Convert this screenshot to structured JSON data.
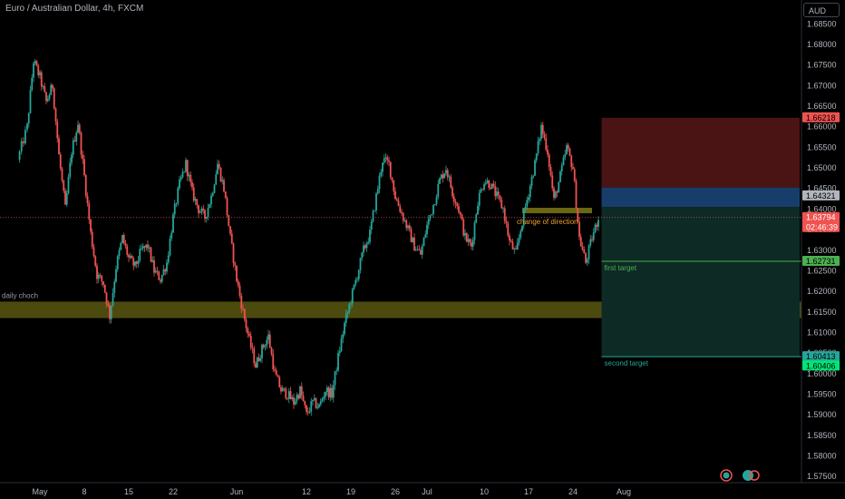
{
  "header": {
    "title": "Euro / Australian Dollar, 4h, FXCM",
    "currency": "AUD"
  },
  "colors": {
    "up": "#26a69a",
    "down": "#ef5350",
    "zone": "#4d4a0e",
    "stop": "#4a1414",
    "profit": "#0d2a25",
    "entry": "#173e6b",
    "first_target": "#4caf50",
    "second_target": "#26a69a"
  },
  "chart_data": {
    "type": "candlestick",
    "title": "Euro / Australian Dollar, 4h, FXCM",
    "xlabel": "",
    "ylabel": "",
    "x_ticks": [
      {
        "label": "May",
        "d": 0
      },
      {
        "label": "8",
        "d": 7
      },
      {
        "label": "15",
        "d": 14
      },
      {
        "label": "22",
        "d": 21
      },
      {
        "label": "Jun",
        "d": 31
      },
      {
        "label": "12",
        "d": 42
      },
      {
        "label": "19",
        "d": 49
      },
      {
        "label": "26",
        "d": 56
      },
      {
        "label": "Jul",
        "d": 61
      },
      {
        "label": "10",
        "d": 70
      },
      {
        "label": "17",
        "d": 77
      },
      {
        "label": "24",
        "d": 84
      },
      {
        "label": "Aug",
        "d": 92
      }
    ],
    "y_ticks": [
      "1.57500",
      "1.58000",
      "1.58500",
      "1.59000",
      "1.59500",
      "1.60000",
      "1.60500",
      "1.61000",
      "1.61500",
      "1.62000",
      "1.62500",
      "1.63000",
      "1.63500",
      "1.64000",
      "1.64500",
      "1.65000",
      "1.65500",
      "1.66000",
      "1.66500",
      "1.67000",
      "1.67500",
      "1.68000",
      "1.68500"
    ],
    "ylim": [
      1.5735,
      1.6908
    ],
    "price_path": [
      [
        -3.5,
        1.652
      ],
      [
        -2,
        1.66
      ],
      [
        -1,
        1.676
      ],
      [
        0,
        1.672
      ],
      [
        1,
        1.666
      ],
      [
        2,
        1.67
      ],
      [
        3,
        1.653
      ],
      [
        4,
        1.64
      ],
      [
        5,
        1.654
      ],
      [
        6,
        1.661
      ],
      [
        7,
        1.648
      ],
      [
        8,
        1.634
      ],
      [
        9,
        1.624
      ],
      [
        10,
        1.622
      ],
      [
        11,
        1.614
      ],
      [
        12,
        1.626
      ],
      [
        13,
        1.633
      ],
      [
        14,
        1.628
      ],
      [
        15,
        1.626
      ],
      [
        16,
        1.63
      ],
      [
        17,
        1.631
      ],
      [
        18,
        1.625
      ],
      [
        19,
        1.623
      ],
      [
        20,
        1.627
      ],
      [
        21,
        1.638
      ],
      [
        22,
        1.646
      ],
      [
        23,
        1.651
      ],
      [
        24,
        1.644
      ],
      [
        25,
        1.64
      ],
      [
        26,
        1.638
      ],
      [
        27,
        1.643
      ],
      [
        28,
        1.651
      ],
      [
        29,
        1.645
      ],
      [
        30,
        1.633
      ],
      [
        31,
        1.623
      ],
      [
        32,
        1.615
      ],
      [
        33,
        1.608
      ],
      [
        34,
        1.602
      ],
      [
        35,
        1.606
      ],
      [
        36,
        1.609
      ],
      [
        37,
        1.6
      ],
      [
        38,
        1.596
      ],
      [
        39,
        1.595
      ],
      [
        40,
        1.593
      ],
      [
        41,
        1.596
      ],
      [
        42,
        1.59
      ],
      [
        43,
        1.593
      ],
      [
        44,
        1.592
      ],
      [
        45,
        1.596
      ],
      [
        46,
        1.595
      ],
      [
        47,
        1.604
      ],
      [
        48,
        1.612
      ],
      [
        49,
        1.618
      ],
      [
        50,
        1.624
      ],
      [
        51,
        1.63
      ],
      [
        52,
        1.634
      ],
      [
        53,
        1.643
      ],
      [
        54,
        1.652
      ],
      [
        55,
        1.651
      ],
      [
        56,
        1.643
      ],
      [
        57,
        1.639
      ],
      [
        58,
        1.635
      ],
      [
        59,
        1.631
      ],
      [
        60,
        1.629
      ],
      [
        61,
        1.636
      ],
      [
        62,
        1.641
      ],
      [
        63,
        1.647
      ],
      [
        64,
        1.65
      ],
      [
        65,
        1.644
      ],
      [
        66,
        1.64
      ],
      [
        67,
        1.633
      ],
      [
        68,
        1.631
      ],
      [
        69,
        1.642
      ],
      [
        70,
        1.647
      ],
      [
        71,
        1.646
      ],
      [
        72,
        1.643
      ],
      [
        73,
        1.64
      ],
      [
        74,
        1.632
      ],
      [
        75,
        1.629
      ],
      [
        76,
        1.637
      ],
      [
        77,
        1.644
      ],
      [
        78,
        1.651
      ],
      [
        79,
        1.66
      ],
      [
        80,
        1.654
      ],
      [
        81,
        1.642
      ],
      [
        82,
        1.648
      ],
      [
        83,
        1.655
      ],
      [
        84,
        1.65
      ],
      [
        85,
        1.633
      ],
      [
        86,
        1.627
      ],
      [
        87,
        1.633
      ],
      [
        88,
        1.6379
      ]
    ],
    "annotations": {
      "daily_choch": {
        "label": "daily choch",
        "y_top": 1.6175,
        "y_bottom": 1.6135,
        "d_start": -3.5,
        "d_end": 98
      },
      "change_of_direction": {
        "label": "change of direction",
        "y_top": 1.6403,
        "y_bottom": 1.639,
        "d_start": 76,
        "d_end": 87
      },
      "position": {
        "d_start": 88.5,
        "d_end": 98,
        "stop": 1.66218,
        "entry_top": 1.6452,
        "entry": 1.64321,
        "entry_bottom": 1.6405,
        "first_target": {
          "label": "first target",
          "price": 1.62731
        },
        "second_target": {
          "label": "second target",
          "price": 1.60413
        }
      }
    },
    "price_tags": [
      {
        "name": "stop-tag",
        "price": 1.66218,
        "label": "1.66218",
        "bg": "#ef5350",
        "fg": "#000000"
      },
      {
        "name": "entry-tag",
        "price": 1.64321,
        "label": "1.64321",
        "bg": "#b2b5be",
        "fg": "#000000"
      },
      {
        "name": "last-price-tag",
        "price": 1.63794,
        "label": "1.63794",
        "sub": "02:46:39",
        "bg": "#ef5350",
        "fg": "#ffffff"
      },
      {
        "name": "first-target-tag",
        "price": 1.62731,
        "label": "1.62731",
        "bg": "#4caf50",
        "fg": "#000000"
      },
      {
        "name": "second-target-tag",
        "price": 1.60413,
        "label": "1.60413",
        "bg": "#26a69a",
        "fg": "#000000"
      },
      {
        "name": "lower-tag",
        "price": 1.60406,
        "label": "1.60406",
        "bg": "#00e676",
        "fg": "#000000"
      }
    ],
    "last_price": 1.63794
  }
}
